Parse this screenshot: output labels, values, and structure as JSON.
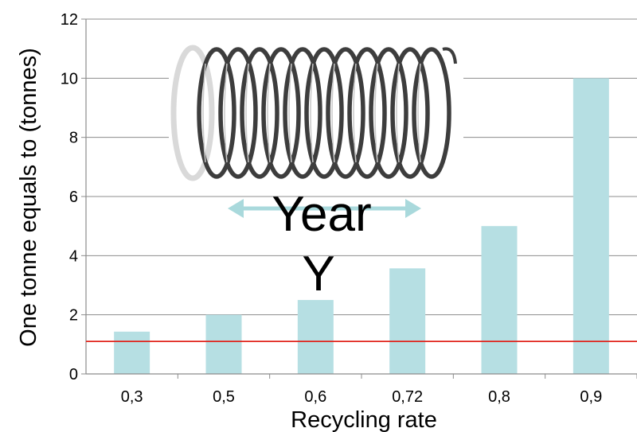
{
  "chart_data": {
    "type": "bar",
    "categories": [
      "0,3",
      "0,5",
      "0,6",
      "0,72",
      "0,8",
      "0,9"
    ],
    "values": [
      1.43,
      2.0,
      2.5,
      3.57,
      5.0,
      10.0
    ],
    "xlabel": "Recycling rate",
    "ylabel": "One tonne equals to (tonnes)",
    "ylim": [
      0,
      12
    ],
    "yticks": [
      0,
      2,
      4,
      6,
      8,
      10,
      12
    ],
    "reference_line": 1.1,
    "grid": true,
    "colors": {
      "bar": "#b6dfe3",
      "reference_line": "#e0241c",
      "grid": "#8c8c8c",
      "arrow": "#a9d9dc"
    }
  },
  "annotation": {
    "line1": "Year",
    "line2": "Y"
  },
  "illustration": {
    "icon": "metal-spring-icon"
  }
}
